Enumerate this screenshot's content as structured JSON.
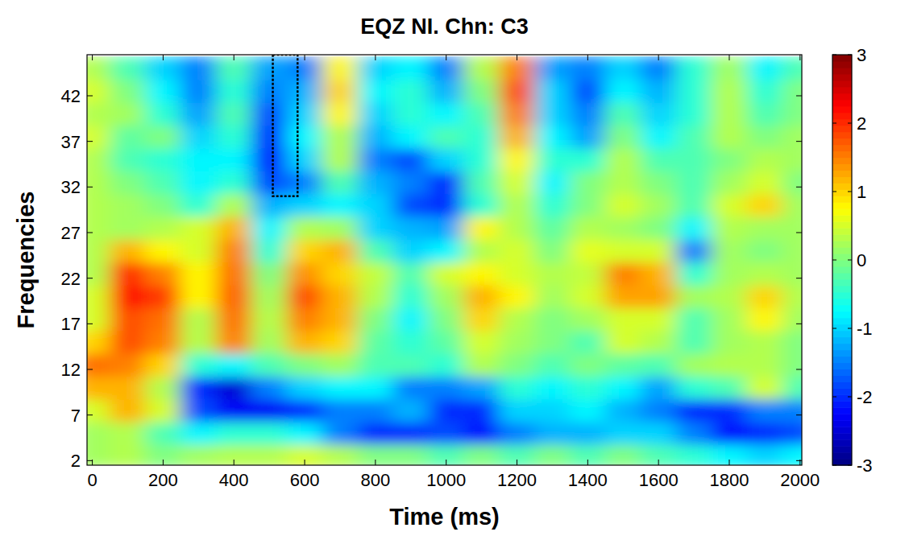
{
  "chart_data": {
    "type": "heatmap",
    "title": "EQZ NI. Chn: C3",
    "x_label": "Time (ms)",
    "y_label": "Frequencies",
    "xlim": [
      -15,
      2005
    ],
    "ylim": [
      1.5,
      46.5
    ],
    "xticks": [
      0,
      200,
      400,
      600,
      800,
      1000,
      1200,
      1400,
      1600,
      1800,
      2000
    ],
    "yticks": [
      2,
      7,
      12,
      17,
      22,
      27,
      32,
      37,
      42
    ],
    "x": [
      0,
      100,
      200,
      300,
      400,
      500,
      600,
      700,
      800,
      900,
      1000,
      1100,
      1200,
      1300,
      1400,
      1500,
      1600,
      1700,
      1800,
      1900,
      2000
    ],
    "y": [
      2.5,
      5,
      7.5,
      10,
      12.5,
      15,
      17.5,
      20,
      22.5,
      25,
      27.5,
      30,
      32.5,
      35,
      37.5,
      40,
      42.5,
      45
    ],
    "z": [
      [
        0.2,
        0.3,
        0,
        0.2,
        0.3,
        0.3,
        0.5,
        0.3,
        0,
        0,
        -0.3,
        0,
        -0.3,
        0,
        -0.3,
        0,
        -0.3,
        -0.5,
        -0.8,
        -1.0,
        -0.8
      ],
      [
        0.2,
        0.3,
        -0.3,
        -0.8,
        -0.5,
        -0.5,
        -0.8,
        -1.5,
        -2.0,
        -2.0,
        -1.8,
        -2.2,
        -1.5,
        -1.2,
        -1.2,
        -1.0,
        -1.0,
        -1.5,
        -2.2,
        -2.0,
        -1.8
      ],
      [
        0.5,
        1.2,
        0.5,
        -1.8,
        -2.3,
        -2.3,
        -2.0,
        -1.5,
        -1.5,
        -1.2,
        -2.0,
        -2.0,
        -1.0,
        -1.0,
        -0.8,
        -1.2,
        -1.5,
        -2.0,
        -2.0,
        -1.5,
        -1.5
      ],
      [
        1.2,
        1.2,
        0.3,
        -2.0,
        -2.5,
        -1.5,
        -1.0,
        -0.8,
        -0.8,
        -1.5,
        -1.5,
        -1.3,
        -0.5,
        -0.8,
        -0.5,
        -0.8,
        -1.3,
        -0.5,
        -0.3,
        0.5,
        -0.3
      ],
      [
        1.6,
        1.5,
        1.0,
        -0.5,
        -0.8,
        -0.3,
        0,
        0.2,
        -0.3,
        -0.3,
        -0.5,
        0.3,
        0,
        -0.3,
        0,
        -0.2,
        -0.3,
        0.2,
        0.3,
        0.3,
        0
      ],
      [
        1.0,
        1.8,
        1.5,
        0.3,
        1.5,
        0.2,
        1.2,
        1.0,
        -0.2,
        -0.5,
        -0.2,
        0.5,
        0.2,
        0,
        -0.3,
        0.5,
        0.3,
        -0.3,
        0.2,
        0.3,
        0
      ],
      [
        0.5,
        1.8,
        1.6,
        0.3,
        1.6,
        0.3,
        1.5,
        1.2,
        0,
        -0.8,
        0,
        1.0,
        0.3,
        0,
        0.2,
        0.5,
        0.5,
        -0.3,
        0.2,
        0.8,
        0.2
      ],
      [
        0.5,
        2.2,
        1.9,
        0.8,
        1.7,
        0.2,
        1.8,
        1.2,
        0.3,
        -0.5,
        0.2,
        1.2,
        0.8,
        0.2,
        0.5,
        1.3,
        1.3,
        0.2,
        0.3,
        1.0,
        0.3
      ],
      [
        0.3,
        2.0,
        1.5,
        0.8,
        1.6,
        0,
        1.4,
        1.0,
        0.4,
        -0.3,
        0.5,
        0.8,
        0.5,
        0.3,
        0.4,
        1.5,
        1.2,
        -0.5,
        0.2,
        0.3,
        0.2
      ],
      [
        0.3,
        1.2,
        0.8,
        0.5,
        1.5,
        -0.5,
        1.0,
        1.2,
        -0.3,
        -1.0,
        -0.8,
        0.3,
        0.5,
        0,
        0.6,
        0.5,
        0.5,
        -1.5,
        0.2,
        0,
        0.2
      ],
      [
        0.3,
        0.2,
        0.3,
        0.5,
        1.2,
        -0.8,
        0.3,
        0.2,
        -1.0,
        -1.2,
        -1.3,
        0.8,
        0.3,
        -0.2,
        0.3,
        0.2,
        0,
        -0.8,
        0.3,
        0.2,
        0.2
      ],
      [
        0.3,
        0.2,
        0,
        -0.5,
        0.3,
        -1.2,
        -1.0,
        -0.8,
        -1.0,
        -1.8,
        -2.0,
        -0.5,
        0.3,
        -0.5,
        0,
        0.5,
        0.2,
        -0.3,
        0.5,
        1.0,
        0.2
      ],
      [
        0.3,
        0,
        -0.3,
        -0.8,
        -0.5,
        -1.8,
        -1.5,
        -0.3,
        -1.2,
        -1.5,
        -2.0,
        -0.3,
        0.5,
        -0.8,
        0,
        0.3,
        0,
        -0.3,
        0.2,
        0.5,
        0
      ],
      [
        0.3,
        -0.3,
        -0.5,
        -0.8,
        -0.8,
        -2.2,
        -1.0,
        0.3,
        -1.5,
        -1.8,
        -1.0,
        -0.5,
        0.8,
        -0.5,
        -0.5,
        0.3,
        -0.3,
        -0.3,
        0,
        0.3,
        0.2
      ],
      [
        0.5,
        -0.2,
        0,
        -1.0,
        -0.5,
        -2.0,
        -0.8,
        0.3,
        -1.2,
        -0.8,
        -0.3,
        -0.5,
        1.2,
        -0.8,
        -1.3,
        0,
        -0.8,
        -0.3,
        0.3,
        0,
        0.2
      ],
      [
        0.3,
        0.2,
        -0.5,
        -1.3,
        -0.3,
        -1.8,
        -1.0,
        0.8,
        -1.0,
        -0.5,
        -0.8,
        -0.3,
        1.5,
        -1.0,
        -1.5,
        -0.3,
        -1.0,
        -0.5,
        0.3,
        -0.3,
        0
      ],
      [
        0.5,
        0,
        -0.8,
        -1.5,
        -0.5,
        -1.5,
        -1.2,
        1.0,
        -0.8,
        -0.5,
        -1.2,
        0,
        1.8,
        -1.0,
        -1.8,
        -0.8,
        -1.2,
        -0.5,
        0.3,
        -0.5,
        0
      ],
      [
        0.3,
        -0.3,
        -1.0,
        -1.5,
        -0.3,
        -1.3,
        -1.5,
        0.8,
        -1.0,
        -0.8,
        -1.5,
        0.3,
        1.5,
        -1.3,
        -1.5,
        -1.0,
        -1.5,
        -0.5,
        0.2,
        -0.8,
        -0.3
      ]
    ],
    "colorbar": {
      "range": [
        -3,
        3
      ],
      "ticks": [
        -3,
        -2,
        -1,
        0,
        1,
        2,
        3
      ]
    },
    "highlight_box": {
      "x": [
        510,
        580
      ],
      "y": [
        31,
        46.5
      ]
    }
  }
}
